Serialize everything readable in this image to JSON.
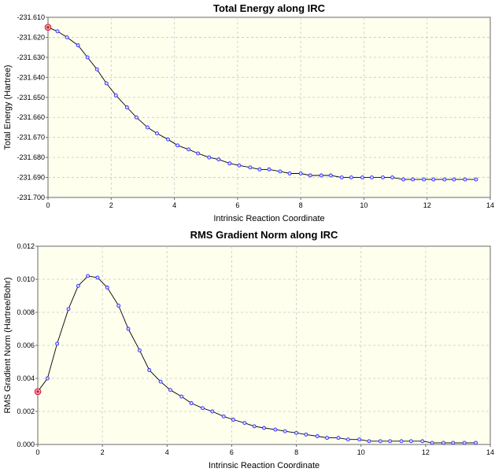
{
  "chart_data": [
    {
      "type": "line",
      "title": "Total Energy along IRC",
      "xlabel": "Intrinsic Reaction Coordinate",
      "ylabel": "Total Energy (Hartree)",
      "xlim": [
        0,
        14
      ],
      "ylim": [
        -231.7,
        -231.61
      ],
      "xticks": [
        0,
        2,
        4,
        6,
        8,
        10,
        12,
        14
      ],
      "xtick_labels": [
        "0",
        "2",
        "4",
        "6",
        "8",
        "10",
        "12",
        "14"
      ],
      "yticks": [
        -231.61,
        -231.62,
        -231.63,
        -231.64,
        -231.65,
        -231.66,
        -231.67,
        -231.68,
        -231.69,
        -231.7
      ],
      "ytick_labels": [
        "-231.610",
        "-231.620",
        "-231.630",
        "-231.640",
        "-231.650",
        "-231.660",
        "-231.670",
        "-231.680",
        "-231.690",
        "-231.700"
      ],
      "grid": true,
      "highlighted_index": 0,
      "x": [
        0,
        0.3,
        0.6,
        0.95,
        1.25,
        1.55,
        1.85,
        2.15,
        2.5,
        2.8,
        3.15,
        3.45,
        3.8,
        4.1,
        4.45,
        4.75,
        5.1,
        5.4,
        5.75,
        6.05,
        6.4,
        6.7,
        7.0,
        7.35,
        7.65,
        8.0,
        8.3,
        8.65,
        8.95,
        9.3,
        9.6,
        9.95,
        10.25,
        10.6,
        10.9,
        11.25,
        11.55,
        11.9,
        12.2,
        12.55,
        12.85,
        13.2,
        13.55
      ],
      "y": [
        -231.615,
        -231.617,
        -231.62,
        -231.624,
        -231.63,
        -231.636,
        -231.643,
        -231.649,
        -231.655,
        -231.66,
        -231.665,
        -231.668,
        -231.671,
        -231.674,
        -231.676,
        -231.678,
        -231.68,
        -231.681,
        -231.683,
        -231.684,
        -231.685,
        -231.686,
        -231.686,
        -231.687,
        -231.688,
        -231.688,
        -231.689,
        -231.689,
        -231.689,
        -231.69,
        -231.69,
        -231.69,
        -231.69,
        -231.69,
        -231.69,
        -231.691,
        -231.691,
        -231.691,
        -231.691,
        -231.691,
        -231.691,
        -231.691,
        -231.691
      ]
    },
    {
      "type": "line",
      "title": "RMS Gradient Norm along IRC",
      "xlabel": "Intrinsic Reaction Coordinate",
      "ylabel": "RMS Gradient Norm (Hartree/Bohr)",
      "xlim": [
        0,
        14
      ],
      "ylim": [
        0,
        0.012
      ],
      "xticks": [
        0,
        2,
        4,
        6,
        8,
        10,
        12,
        14
      ],
      "xtick_labels": [
        "0",
        "2",
        "4",
        "6",
        "8",
        "10",
        "12",
        "14"
      ],
      "yticks": [
        0,
        0.002,
        0.004,
        0.006,
        0.008,
        0.01,
        0.012
      ],
      "ytick_labels": [
        "0.000",
        "0.002",
        "0.004",
        "0.006",
        "0.008",
        "0.010",
        "0.012"
      ],
      "grid": true,
      "highlighted_index": 0,
      "x": [
        0,
        0.3,
        0.6,
        0.95,
        1.25,
        1.55,
        1.85,
        2.15,
        2.5,
        2.8,
        3.15,
        3.45,
        3.8,
        4.1,
        4.45,
        4.75,
        5.1,
        5.4,
        5.75,
        6.05,
        6.4,
        6.7,
        7.0,
        7.35,
        7.65,
        8.0,
        8.3,
        8.65,
        8.95,
        9.3,
        9.6,
        9.95,
        10.25,
        10.6,
        10.9,
        11.25,
        11.55,
        11.9,
        12.2,
        12.55,
        12.85,
        13.2,
        13.55
      ],
      "y": [
        0.0032,
        0.004,
        0.0061,
        0.0082,
        0.0096,
        0.0102,
        0.0101,
        0.0095,
        0.0084,
        0.007,
        0.0057,
        0.0045,
        0.0038,
        0.0033,
        0.0029,
        0.0025,
        0.0022,
        0.002,
        0.0017,
        0.0015,
        0.0013,
        0.0011,
        0.001,
        0.0009,
        0.0008,
        0.0007,
        0.0006,
        0.0005,
        0.0004,
        0.0004,
        0.0003,
        0.0003,
        0.0002,
        0.0002,
        0.0002,
        0.0002,
        0.0002,
        0.0002,
        0.0001,
        0.0001,
        0.0001,
        0.0001,
        0.0001
      ]
    }
  ]
}
